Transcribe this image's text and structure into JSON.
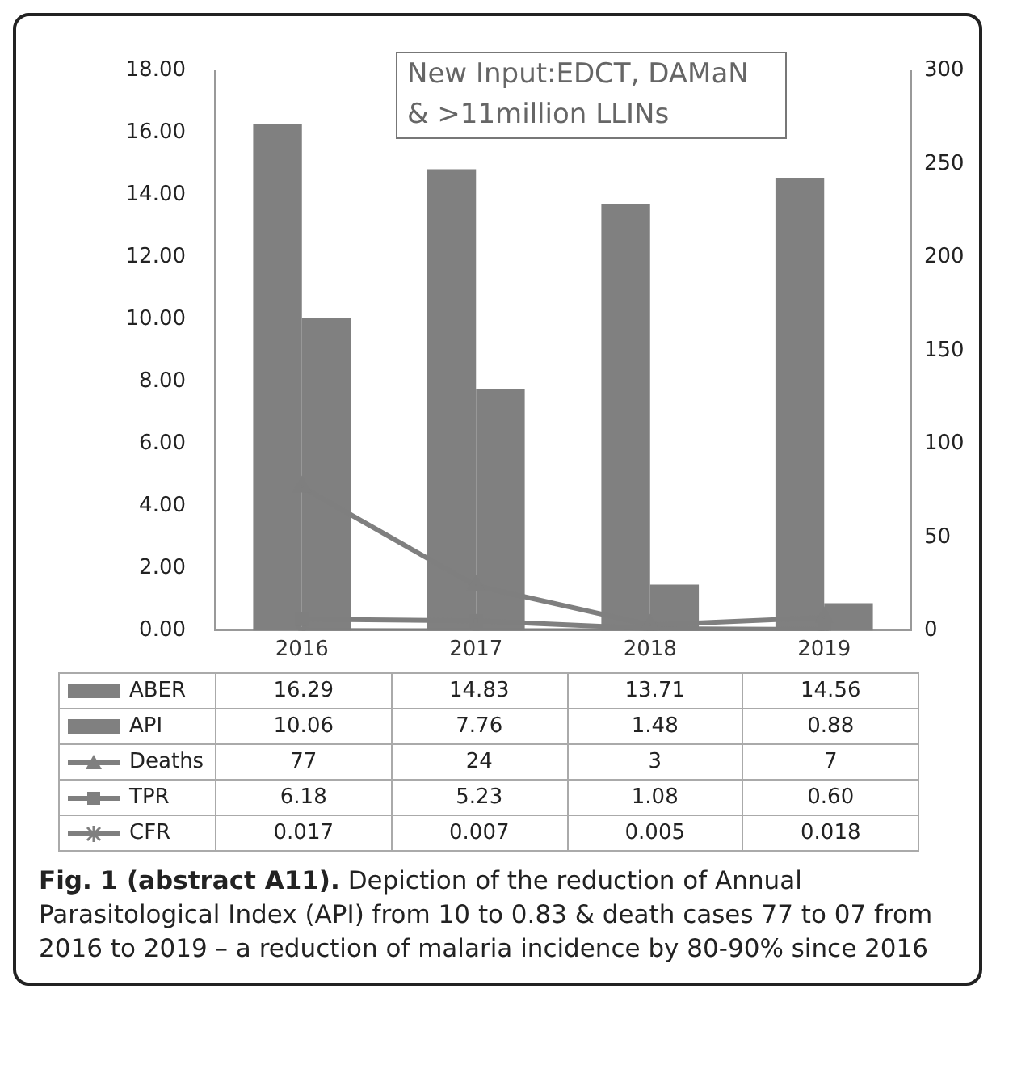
{
  "chart_data": {
    "type": "bar",
    "title": "Fig. 1 (abstract A11).",
    "annotations": [
      "New Input:EDCT, DAMaN & >11million LLINs",
      "Depiction of the reduction of Annual Parasitological Index (API) from 10 to 0.83 & death cases 77 to 07 from 2016 to 2019 – a reduction of malaria incidence by 80-90% since 2016"
    ],
    "categories": [
      "2016",
      "2017",
      "2018",
      "2019"
    ],
    "series": [
      {
        "name": "ABER",
        "color": "#808080",
        "values": [
          16.29,
          14.83,
          13.71,
          14.56
        ],
        "value_labels": [
          "16.29",
          "14.83",
          "13.71",
          "14.56"
        ]
      },
      {
        "name": "API",
        "color": "#808080",
        "values": [
          10.06,
          7.76,
          1.48,
          0.88
        ],
        "value_labels": [
          "10.06",
          "7.76",
          "1.48",
          "0.88"
        ]
      },
      {
        "name": "Deaths",
        "type": "line",
        "axis": "y2",
        "marker": "triangle",
        "color": "#7f7f7f",
        "values": [
          77,
          24,
          3,
          7
        ],
        "value_labels": [
          "77",
          "24",
          "3",
          "7"
        ]
      },
      {
        "name": "TPR",
        "type": "line",
        "axis": "y2",
        "marker": "square",
        "color": "#7f7f7f",
        "values": [
          6.18,
          5.23,
          1.08,
          0.6
        ],
        "value_labels": [
          "6.18",
          "5.23",
          "1.08",
          "0.60"
        ]
      },
      {
        "name": "CFR",
        "type": "line",
        "axis": "y2",
        "marker": "cross",
        "color": "#7f7f7f",
        "values": [
          0.017,
          0.007,
          0.005,
          0.018
        ],
        "value_labels": [
          "0.017",
          "0.007",
          "0.005",
          "0.018"
        ]
      }
    ],
    "legend": "bottom",
    "ylim": [
      0,
      18
    ],
    "yticks": [
      {
        "value": 0,
        "label": "0.00"
      },
      {
        "value": 2,
        "label": "2.00"
      },
      {
        "value": 4,
        "label": "4.00"
      },
      {
        "value": 6,
        "label": "6.00"
      },
      {
        "value": 8,
        "label": "8.00"
      },
      {
        "value": 10,
        "label": "10.00"
      },
      {
        "value": 12,
        "label": "12.00"
      },
      {
        "value": 14,
        "label": "14.00"
      },
      {
        "value": 16,
        "label": "16.00"
      },
      {
        "value": 18,
        "label": "18.00"
      }
    ],
    "y2lim": [
      0,
      300
    ],
    "y2ticks": [
      0,
      50,
      100,
      150,
      200,
      250,
      300
    ],
    "grid": false
  }
}
